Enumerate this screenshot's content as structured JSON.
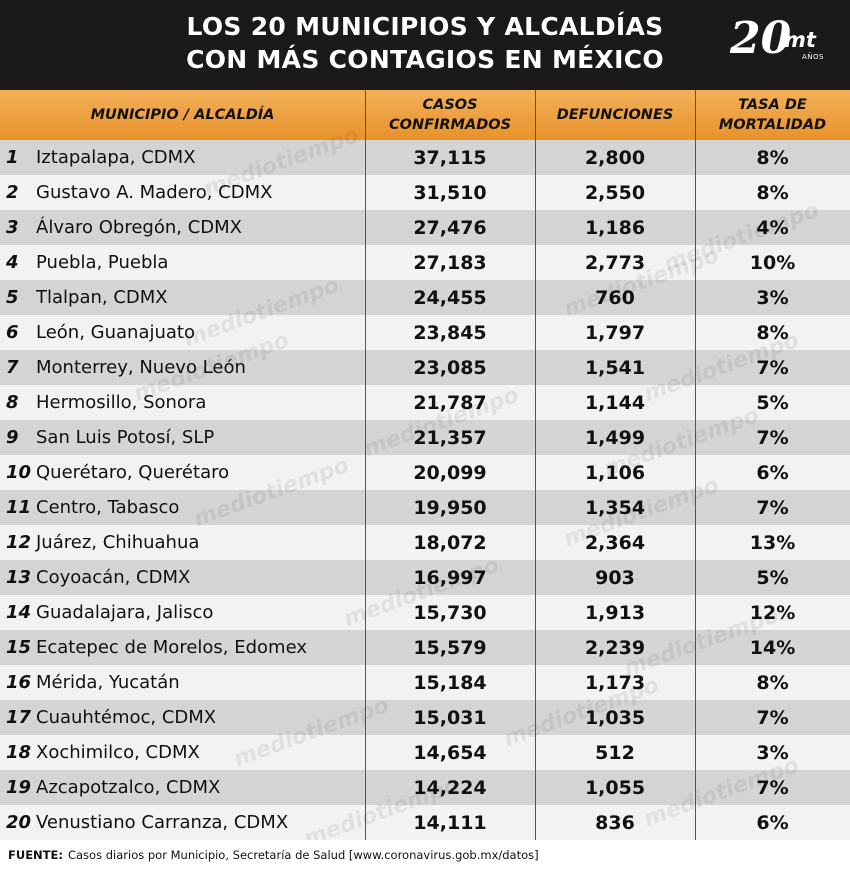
{
  "header": {
    "title_line1": "LOS 20 MUNICIPIOS Y ALCALDÍAS",
    "title_line2": "CON MÁS CONTAGIOS EN MÉXICO",
    "logo_number": "20",
    "logo_mt": "mt",
    "logo_anos": "AÑOS"
  },
  "columns": {
    "municipio": "MUNICIPIO / ALCALDÍA",
    "casos_line1": "CASOS",
    "casos_line2": "CONFIRMADOS",
    "defunciones": "DEFUNCIONES",
    "tasa_line1": "TASA DE",
    "tasa_line2": "MORTALIDAD"
  },
  "watermark_text": "mediotiempo",
  "footer": {
    "label": "FUENTE:",
    "text": "Casos diarios por Municipio, Secretaría de Salud [www.coronavirus.gob.mx/datos]"
  },
  "chart_data": {
    "type": "table",
    "title": "LOS 20 MUNICIPIOS Y ALCALDÍAS CON MÁS CONTAGIOS EN MÉXICO",
    "columns": [
      "MUNICIPIO / ALCALDÍA",
      "CASOS CONFIRMADOS",
      "DEFUNCIONES",
      "TASA DE MORTALIDAD"
    ],
    "rows": [
      {
        "rank": "1",
        "name": "Iztapalapa, CDMX",
        "casos": "37,115",
        "defunciones": "2,800",
        "tasa": "8%"
      },
      {
        "rank": "2",
        "name": "Gustavo A. Madero, CDMX",
        "casos": "31,510",
        "defunciones": "2,550",
        "tasa": "8%"
      },
      {
        "rank": "3",
        "name": "Álvaro Obregón, CDMX",
        "casos": "27,476",
        "defunciones": "1,186",
        "tasa": "4%"
      },
      {
        "rank": "4",
        "name": "Puebla, Puebla",
        "casos": "27,183",
        "defunciones": "2,773",
        "tasa": "10%"
      },
      {
        "rank": "5",
        "name": "Tlalpan, CDMX",
        "casos": "24,455",
        "defunciones": "760",
        "tasa": "3%"
      },
      {
        "rank": "6",
        "name": "León, Guanajuato",
        "casos": "23,845",
        "defunciones": "1,797",
        "tasa": "8%"
      },
      {
        "rank": "7",
        "name": "Monterrey, Nuevo León",
        "casos": "23,085",
        "defunciones": "1,541",
        "tasa": "7%"
      },
      {
        "rank": "8",
        "name": "Hermosillo, Sonora",
        "casos": "21,787",
        "defunciones": "1,144",
        "tasa": "5%"
      },
      {
        "rank": "9",
        "name": "San Luis Potosí, SLP",
        "casos": "21,357",
        "defunciones": "1,499",
        "tasa": "7%"
      },
      {
        "rank": "10",
        "name": "Querétaro, Querétaro",
        "casos": "20,099",
        "defunciones": "1,106",
        "tasa": "6%"
      },
      {
        "rank": "11",
        "name": "Centro, Tabasco",
        "casos": "19,950",
        "defunciones": "1,354",
        "tasa": "7%"
      },
      {
        "rank": "12",
        "name": "Juárez, Chihuahua",
        "casos": "18,072",
        "defunciones": "2,364",
        "tasa": "13%"
      },
      {
        "rank": "13",
        "name": "Coyoacán, CDMX",
        "casos": "16,997",
        "defunciones": "903",
        "tasa": "5%"
      },
      {
        "rank": "14",
        "name": "Guadalajara, Jalisco",
        "casos": "15,730",
        "defunciones": "1,913",
        "tasa": "12%"
      },
      {
        "rank": "15",
        "name": "Ecatepec de Morelos, Edomex",
        "casos": "15,579",
        "defunciones": "2,239",
        "tasa": "14%"
      },
      {
        "rank": "16",
        "name": "Mérida, Yucatán",
        "casos": "15,184",
        "defunciones": "1,173",
        "tasa": "8%"
      },
      {
        "rank": "17",
        "name": "Cuauhtémoc, CDMX",
        "casos": "15,031",
        "defunciones": "1,035",
        "tasa": "7%"
      },
      {
        "rank": "18",
        "name": "Xochimilco, CDMX",
        "casos": "14,654",
        "defunciones": "512",
        "tasa": "3%"
      },
      {
        "rank": "19",
        "name": "Azcapotzalco, CDMX",
        "casos": "14,224",
        "defunciones": "1,055",
        "tasa": "7%"
      },
      {
        "rank": "20",
        "name": "Venustiano Carranza, CDMX",
        "casos": "14,111",
        "defunciones": "836",
        "tasa": "6%"
      }
    ]
  }
}
